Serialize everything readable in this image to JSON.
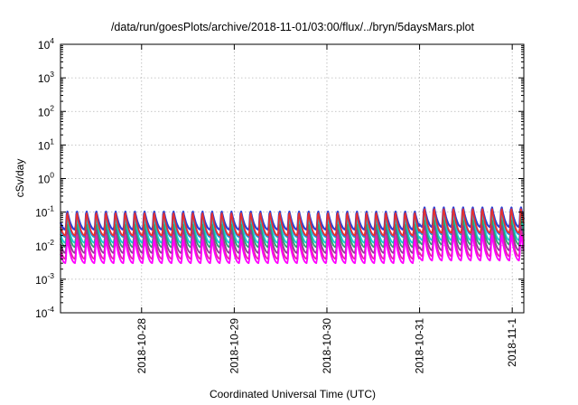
{
  "chart_data": {
    "type": "line",
    "title": "/data/run/goesPlots/archive/2018-11-01/03:00/flux/../bryn/5daysMars.plot",
    "xlabel": "Coordinated Universal Time (UTC)",
    "ylabel": "cSv/day",
    "yscale": "log",
    "ylim": [
      0.0001,
      10000
    ],
    "y_ticks": [
      {
        "value": 0.0001,
        "mantissa": "10",
        "exp": "-4"
      },
      {
        "value": 0.001,
        "mantissa": "10",
        "exp": "-3"
      },
      {
        "value": 0.01,
        "mantissa": "10",
        "exp": "-2"
      },
      {
        "value": 0.1,
        "mantissa": "10",
        "exp": "-1"
      },
      {
        "value": 1,
        "mantissa": "10",
        "exp": "0"
      },
      {
        "value": 10,
        "mantissa": "10",
        "exp": "1"
      },
      {
        "value": 100,
        "mantissa": "10",
        "exp": "2"
      },
      {
        "value": 1000,
        "mantissa": "10",
        "exp": "3"
      },
      {
        "value": 10000,
        "mantissa": "10",
        "exp": "4"
      }
    ],
    "xlim": [
      "2018-10-27 03:00",
      "2018-11-01 03:00"
    ],
    "x_ticks": [
      {
        "value": "2018-10-28 00:00",
        "label": "2018-10-28"
      },
      {
        "value": "2018-10-29 00:00",
        "label": "2018-10-29"
      },
      {
        "value": "2018-10-30 00:00",
        "label": "2018-10-30"
      },
      {
        "value": "2018-10-31 00:00",
        "label": "2018-10-31"
      },
      {
        "value": "2018-11-01 00:00",
        "label": "2018-11-1"
      }
    ],
    "grid": true,
    "legend": "none",
    "pattern": {
      "period_hours": 2.5,
      "note_peak_values_rise_slightly_after": "2018-10-31 00:00"
    },
    "series": [
      {
        "color": "#2b3fd6",
        "peak": 0.12,
        "trough": 0.03
      },
      {
        "color": "#1e8fe6",
        "peak": 0.09,
        "trough": 0.018
      },
      {
        "color": "#14c8d8",
        "peak": 0.07,
        "trough": 0.012
      },
      {
        "color": "#2aa56e",
        "peak": 0.05,
        "trough": 0.009
      },
      {
        "color": "#8a3c96",
        "peak": 0.035,
        "trough": 0.006
      },
      {
        "color": "#e02aa0",
        "peak": 0.025,
        "trough": 0.004
      },
      {
        "color": "#ff00ff",
        "peak": 0.018,
        "trough": 0.003
      },
      {
        "color": "#e63030",
        "peak": 0.11,
        "trough": 0.02
      }
    ]
  }
}
